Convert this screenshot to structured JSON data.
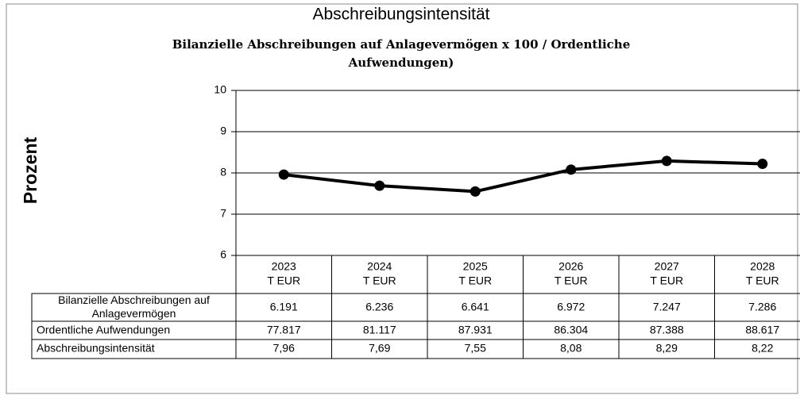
{
  "chart_data": {
    "type": "line",
    "title": "Abschreibungsintensität",
    "subtitle_lines": [
      "Bilanzielle Abschreibungen auf Anlagevermögen x 100 / Ordentliche",
      "Aufwendungen)"
    ],
    "y_label": "Prozent",
    "categories": [
      "2023",
      "2024",
      "2025",
      "2026",
      "2027",
      "2028"
    ],
    "category_unit": "T EUR",
    "series": [
      {
        "name": "Abschreibungsintensität",
        "color": "#000000",
        "values": [
          7.96,
          7.69,
          7.55,
          8.08,
          8.29,
          8.22
        ],
        "value_labels": [
          "7,96",
          "7,69",
          "7,55",
          "8,08",
          "8,29",
          "8,22"
        ]
      }
    ],
    "table_rows": [
      {
        "label": "Bilanzielle Abschreibungen auf Anlagevermögen",
        "cells": [
          "6.191",
          "6.236",
          "6.641",
          "6.972",
          "7.247",
          "7.286"
        ]
      },
      {
        "label": "Ordentliche Aufwendungen",
        "cells": [
          "77.817",
          "81.117",
          "87.931",
          "86.304",
          "87.388",
          "88.617"
        ]
      }
    ],
    "ylim": [
      6,
      10
    ],
    "yticks": [
      6,
      7,
      8,
      9,
      10
    ],
    "grid": true
  }
}
